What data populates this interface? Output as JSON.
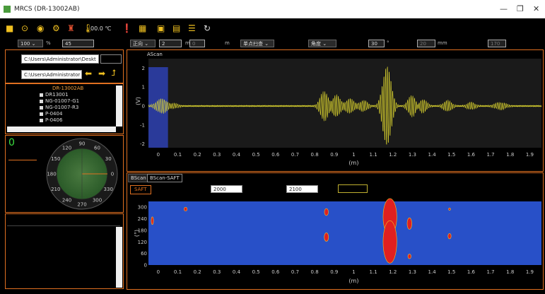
{
  "window": {
    "title": "MRCS (DR-13002AB)"
  },
  "toolbar": {
    "temperature": "00.0 ℃"
  },
  "params": {
    "f1": "100",
    "f1_unit": "%",
    "f2": "45",
    "dir_select": "正向",
    "f3": "2",
    "f3_unit": "m",
    "f4": "0",
    "f4_unit": "m",
    "mode_select": "单点扫查",
    "angle_select": "角度",
    "f5": "30",
    "f5_unit": "°",
    "f6": "20",
    "f6_unit": "mm",
    "f7": "170"
  },
  "files": {
    "path1": "C:\\Users\\Administrator\\Deskt",
    "path2": "C:\\Users\\Administrator"
  },
  "tree": {
    "root": "DR-13002AB",
    "items": [
      "DR13001",
      "NG-01007-G1",
      "NG-01007-R3",
      "P-0404",
      "P-0406"
    ]
  },
  "compass": {
    "value": "0",
    "labels": [
      "90",
      "60",
      "30",
      "0",
      "330",
      "300",
      "270",
      "240",
      "210",
      "180",
      "150",
      "120"
    ]
  },
  "ascan": {
    "title": "AScan",
    "ylabel": "(V)",
    "xlabel": "(m)"
  },
  "bscan": {
    "tabs": [
      "BScan",
      "BScan-SAFT"
    ],
    "saft_button": "SAFT",
    "from": "2000",
    "to": "2100",
    "ylabel": "(°)",
    "xlabel": "(m)"
  },
  "chart_data": [
    {
      "type": "line",
      "title": "AScan",
      "xlabel": "(m)",
      "ylabel": "(V)",
      "xlim": [
        -0.05,
        1.96
      ],
      "ylim": [
        -2.2,
        2.5
      ],
      "xticks": [
        "0",
        "0.1",
        "0.2",
        "0.3",
        "0.4",
        "0.5",
        "0.6",
        "0.7",
        "0.8",
        "0.9",
        "1",
        "1.1",
        "1.2",
        "1.3",
        "1.4",
        "1.5",
        "1.6",
        "1.7",
        "1.8",
        "1.9"
      ],
      "yticks": [
        "2",
        "1",
        "0",
        "-1",
        "-2"
      ],
      "gate_range": [
        -0.05,
        0.05
      ],
      "series_color": "#e8e030",
      "bursts": [
        {
          "center": 0.02,
          "amp": 0.4,
          "width": 0.04
        },
        {
          "center": 0.08,
          "amp": 0.15,
          "width": 0.03
        },
        {
          "center": 0.85,
          "amp": 0.8,
          "width": 0.03
        },
        {
          "center": 0.91,
          "amp": 0.6,
          "width": 0.03
        },
        {
          "center": 0.98,
          "amp": 0.4,
          "width": 0.03
        },
        {
          "center": 1.05,
          "amp": 0.3,
          "width": 0.03
        },
        {
          "center": 1.17,
          "amp": 2.2,
          "width": 0.03
        },
        {
          "center": 1.3,
          "amp": 0.6,
          "width": 0.03
        },
        {
          "center": 1.35,
          "amp": 0.4,
          "width": 0.03
        },
        {
          "center": 1.48,
          "amp": 0.3,
          "width": 0.03
        },
        {
          "center": 1.6,
          "amp": 0.2,
          "width": 0.03
        },
        {
          "center": 1.75,
          "amp": 0.2,
          "width": 0.04
        }
      ]
    },
    {
      "type": "heatmap",
      "xlabel": "(m)",
      "ylabel": "(°)",
      "xlim": [
        -0.05,
        1.96
      ],
      "ylim": [
        0,
        330
      ],
      "xticks": [
        "0",
        "0.1",
        "0.2",
        "0.3",
        "0.4",
        "0.5",
        "0.6",
        "0.7",
        "0.8",
        "0.9",
        "1",
        "1.1",
        "1.2",
        "1.3",
        "1.4",
        "1.5",
        "1.6",
        "1.7",
        "1.8",
        "1.9"
      ],
      "yticks": [
        "300",
        "240",
        "180",
        "120",
        "60",
        "0"
      ],
      "background_color": "#2850c8",
      "blob_color": "#e02020",
      "blobs": [
        {
          "x": -0.03,
          "y": 230,
          "rx": 0.006,
          "ry": 20
        },
        {
          "x": 0.14,
          "y": 290,
          "rx": 0.008,
          "ry": 10
        },
        {
          "x": 0.86,
          "y": 275,
          "rx": 0.01,
          "ry": 18
        },
        {
          "x": 0.86,
          "y": 145,
          "rx": 0.011,
          "ry": 22
        },
        {
          "x": 1.185,
          "y": 250,
          "rx": 0.035,
          "ry": 95
        },
        {
          "x": 1.185,
          "y": 120,
          "rx": 0.035,
          "ry": 110
        },
        {
          "x": 1.285,
          "y": 215,
          "rx": 0.012,
          "ry": 30
        },
        {
          "x": 1.285,
          "y": 45,
          "rx": 0.008,
          "ry": 12
        },
        {
          "x": 1.49,
          "y": 290,
          "rx": 0.005,
          "ry": 6
        },
        {
          "x": 1.49,
          "y": 150,
          "rx": 0.008,
          "ry": 14
        }
      ]
    }
  ]
}
